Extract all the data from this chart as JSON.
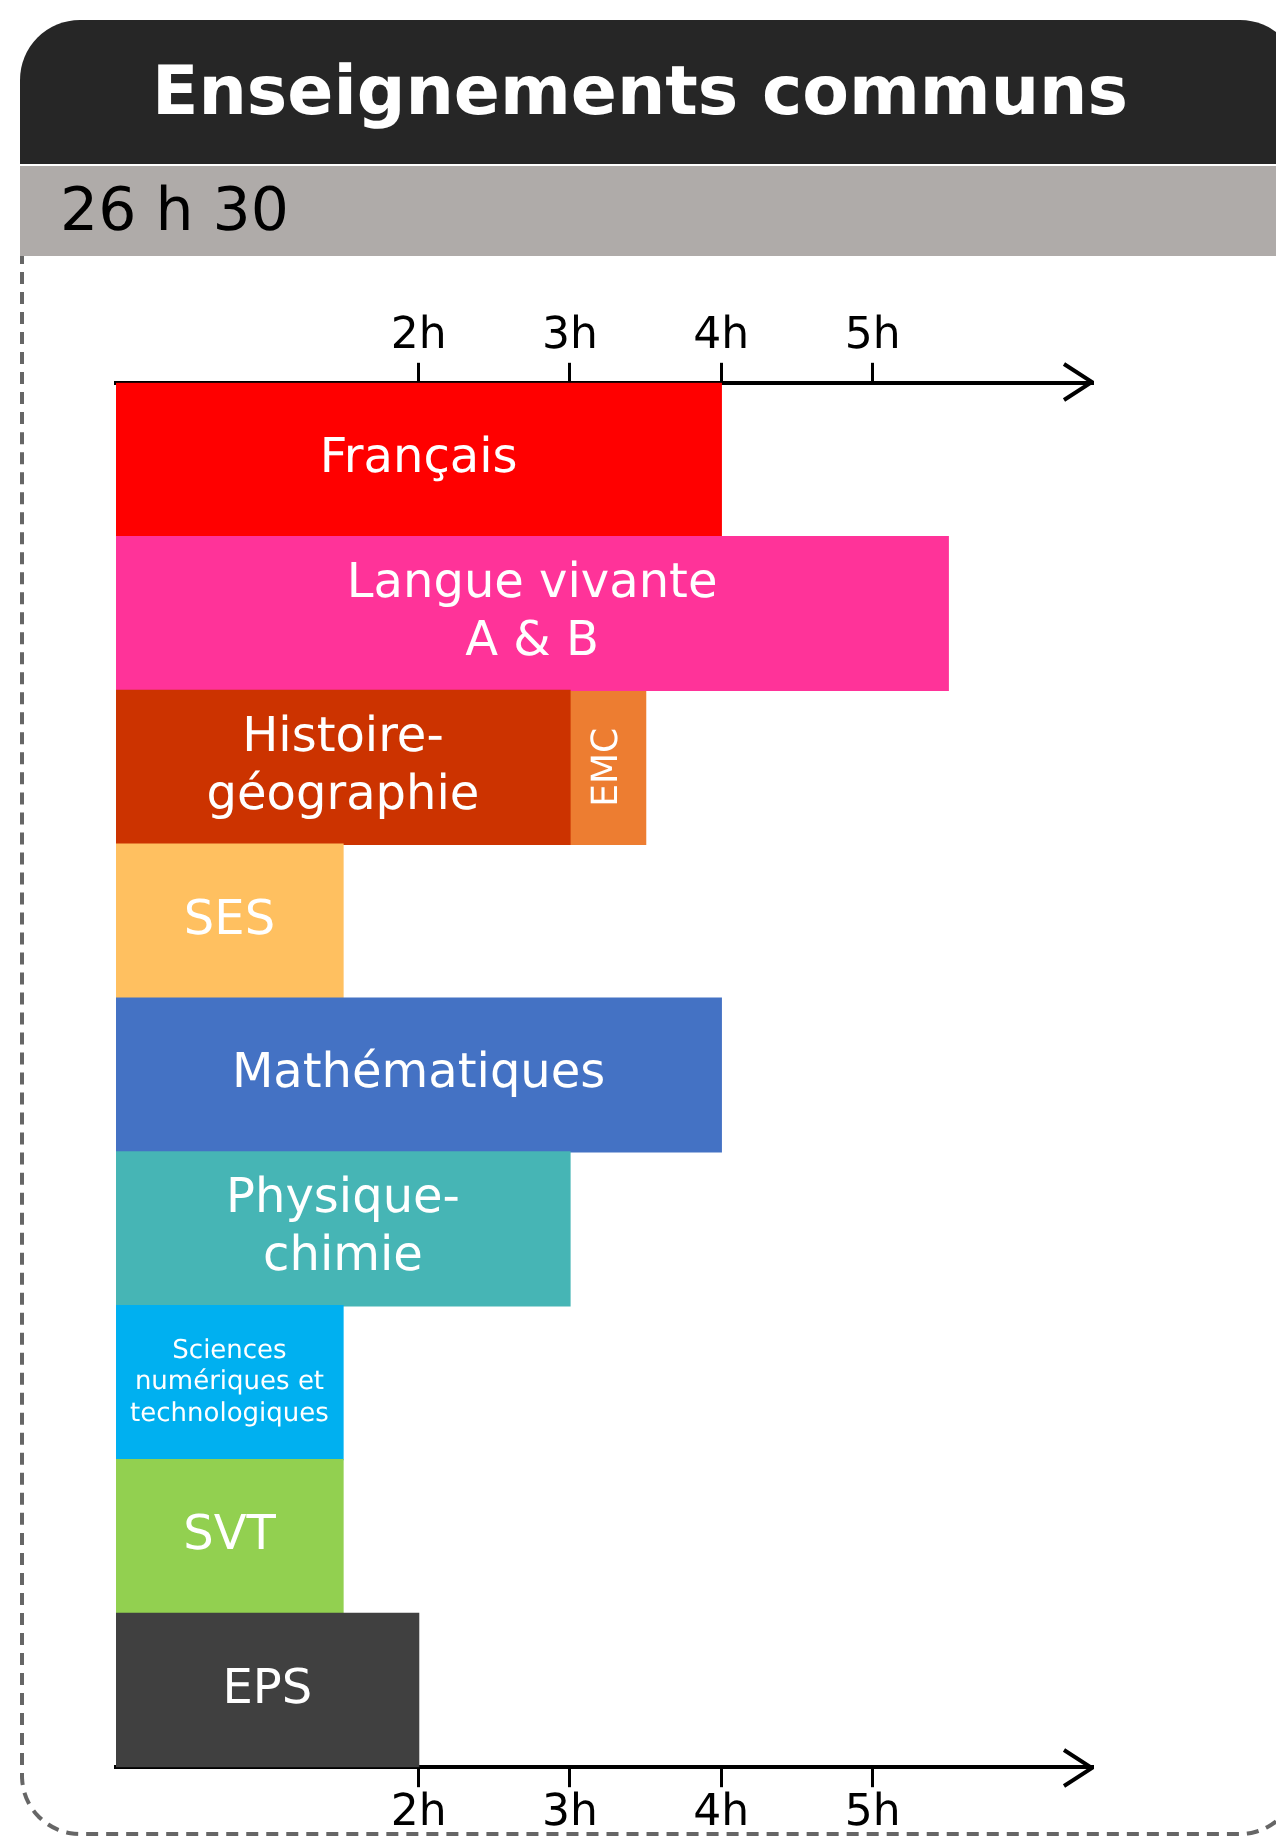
{
  "chart_data": {
    "type": "bar",
    "orientation": "horizontal",
    "stacked": true,
    "title": "Enseignements communs",
    "subtitle": "26 h 30",
    "categories": [
      "Français",
      "Langue vivante A & B",
      "Histoire-géographie",
      "SES",
      "Mathématiques",
      "Physique-chimie",
      "Sciences numériques et technologiques",
      "SVT",
      "EPS"
    ],
    "series": [
      {
        "colors": [
          "#ff0000",
          "#ff3399",
          "#cc3300",
          "#ffc060",
          "#4472c4",
          "#46b5b5",
          "#00b0f0",
          "#92d050",
          "#404040"
        ],
        "values": [
          4,
          5.5,
          3,
          1.5,
          4,
          3,
          1.5,
          1.5,
          2
        ]
      },
      {
        "name": "EMC",
        "color": "#ed7d31",
        "values": [
          null,
          null,
          0.5,
          null,
          null,
          null,
          null,
          null,
          null
        ]
      }
    ],
    "xlim": [
      0,
      6.45
    ],
    "xticks": [
      {
        "value": 2,
        "label": "2h"
      },
      {
        "value": 3,
        "label": "3h"
      },
      {
        "value": 4,
        "label": "4h"
      },
      {
        "value": 5,
        "label": "5h"
      }
    ],
    "x2lim": [
      0,
      6.45
    ],
    "x2ticks": [
      {
        "value": 2,
        "label": "2h"
      },
      {
        "value": 3,
        "label": "3h"
      },
      {
        "value": 4,
        "label": "4h"
      },
      {
        "value": 5,
        "label": "5h"
      }
    ],
    "legend": false,
    "tick_labels": "x"
  }
}
